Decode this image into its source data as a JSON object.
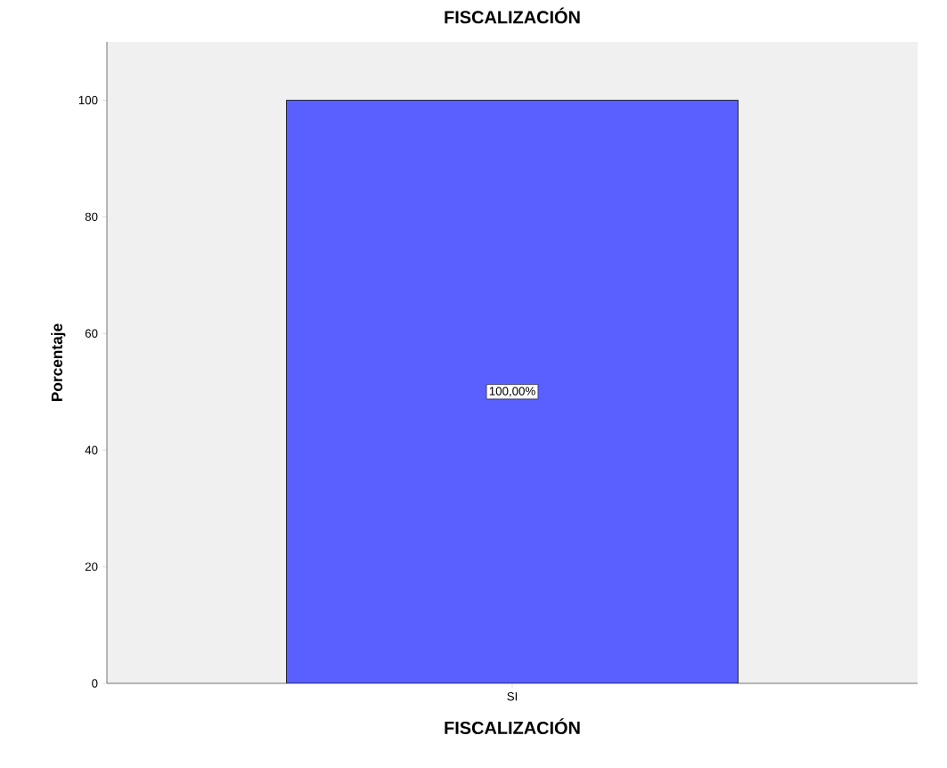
{
  "chart_data": {
    "type": "bar",
    "title": "FISCALIZACIÓN",
    "xlabel": "FISCALIZACIÓN",
    "ylabel": "Porcentaje",
    "categories": [
      "SI"
    ],
    "values": [
      100
    ],
    "value_labels": [
      "100,00%"
    ],
    "color": "#5a5fff",
    "ylim": [
      0,
      110
    ],
    "yticks": [
      0,
      20,
      40,
      60,
      80,
      100
    ]
  }
}
